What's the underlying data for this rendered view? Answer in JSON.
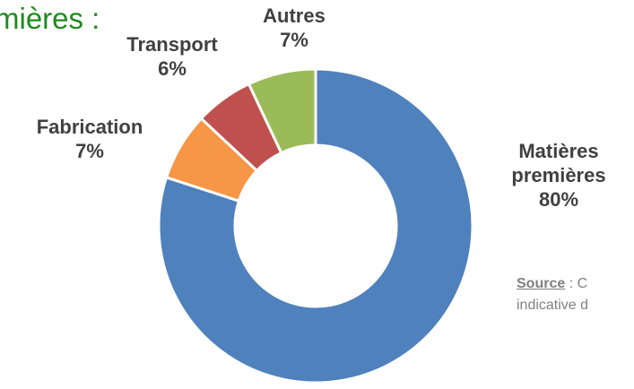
{
  "heading": "mières :",
  "chart_data": {
    "type": "donut",
    "categories": [
      "Matières premières",
      "Fabrication",
      "Transport",
      "Autres"
    ],
    "values": [
      80,
      7,
      6,
      7
    ],
    "value_labels": [
      "80%",
      "7%",
      "6%",
      "7%"
    ],
    "colors": [
      "#4f81bd",
      "#f79646",
      "#c0504d",
      "#9bbb59"
    ]
  },
  "source": {
    "label": "Source",
    "text": " : C",
    "line2": "indicative d"
  }
}
